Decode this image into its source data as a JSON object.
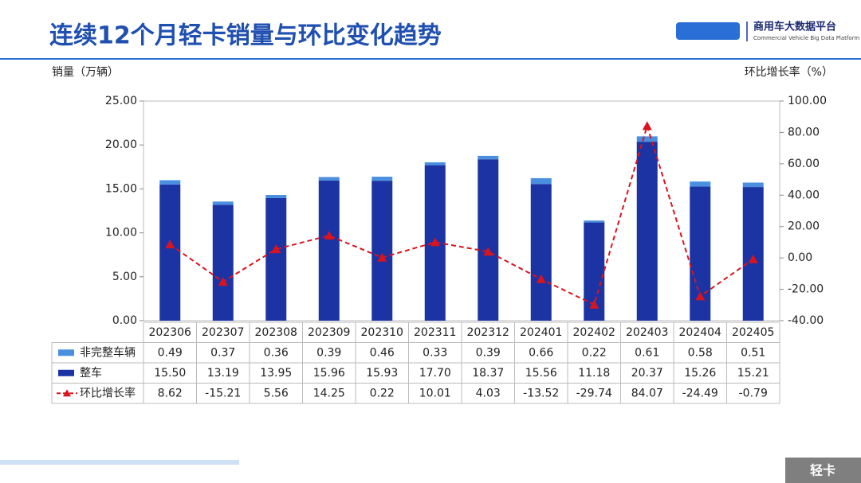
{
  "chart_data": {
    "type": "bar-line",
    "title": "连续12个月轻卡销量与环比变化趋势",
    "logo_title": "商用车大数据平台",
    "logo_subtitle": "Commercial Vehicle Big Data Platform",
    "footer_tag": "轻卡",
    "y_label": "销量（万辆）",
    "y2_label": "环比增长率（%）",
    "categories": [
      "202306",
      "202307",
      "202308",
      "202309",
      "202310",
      "202311",
      "202312",
      "202401",
      "202402",
      "202403",
      "202404",
      "202405"
    ],
    "series": [
      {
        "name": "非完整车辆",
        "color": "#4a8fe0",
        "stack": "top",
        "values": [
          0.49,
          0.37,
          0.36,
          0.39,
          0.46,
          0.33,
          0.39,
          0.66,
          0.22,
          0.61,
          0.58,
          0.51
        ],
        "value_labels": [
          "0.49",
          "0.37",
          "0.36",
          "0.39",
          "0.46",
          "0.33",
          "0.39",
          "0.66",
          "0.22",
          "0.61",
          "0.58",
          "0.51"
        ]
      },
      {
        "name": "整车",
        "color": "#1c33a3",
        "stack": "bottom",
        "values": [
          15.5,
          13.19,
          13.95,
          15.96,
          15.93,
          17.7,
          18.37,
          15.56,
          11.18,
          20.37,
          15.26,
          15.21
        ],
        "value_labels": [
          "15.50",
          "13.19",
          "13.95",
          "15.96",
          "15.93",
          "17.70",
          "18.37",
          "15.56",
          "11.18",
          "20.37",
          "15.26",
          "15.21"
        ]
      },
      {
        "name": "环比增长率",
        "color": "#d9141e",
        "axis": "y2",
        "values": [
          8.62,
          -15.21,
          5.56,
          14.25,
          0.22,
          10.01,
          4.03,
          -13.52,
          -29.74,
          84.07,
          -24.49,
          -0.79
        ],
        "value_labels": [
          "8.62",
          "-15.21",
          "5.56",
          "14.25",
          "0.22",
          "10.01",
          "4.03",
          "-13.52",
          "-29.74",
          "84.07",
          "-24.49",
          "-0.79"
        ]
      }
    ],
    "ylim": [
      0,
      25
    ],
    "yticks": [
      {
        "value": 0,
        "label": "0.00"
      },
      {
        "value": 5,
        "label": "5.00"
      },
      {
        "value": 10,
        "label": "10.00"
      },
      {
        "value": 15,
        "label": "15.00"
      },
      {
        "value": 20,
        "label": "20.00"
      },
      {
        "value": 25,
        "label": "25.00"
      }
    ],
    "y2lim": [
      -40,
      100
    ],
    "y2ticks": [
      {
        "value": -40,
        "label": "-40.00"
      },
      {
        "value": -20,
        "label": "-20.00"
      },
      {
        "value": 0,
        "label": "0.00"
      },
      {
        "value": 20,
        "label": "20.00"
      },
      {
        "value": 40,
        "label": "40.00"
      },
      {
        "value": 60,
        "label": "60.00"
      },
      {
        "value": 80,
        "label": "80.00"
      },
      {
        "value": 100,
        "label": "100.00"
      }
    ]
  }
}
